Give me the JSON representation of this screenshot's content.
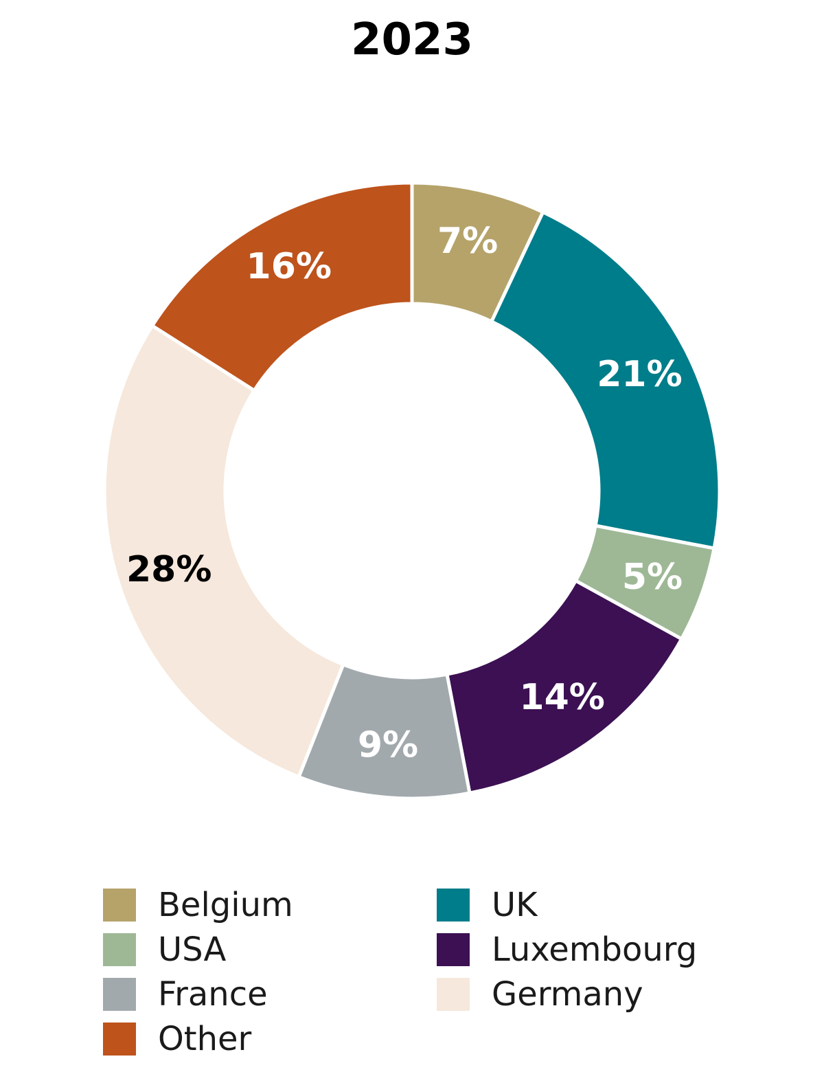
{
  "chart_data": {
    "type": "pie",
    "variant": "donut",
    "title": "2023",
    "unit": "%",
    "slices": [
      {
        "name": "Belgium",
        "value": 7,
        "label": "7%",
        "color": "#B5A36A",
        "label_color": "#ffffff"
      },
      {
        "name": "UK",
        "value": 21,
        "label": "21%",
        "color": "#007D8A",
        "label_color": "#ffffff"
      },
      {
        "name": "USA",
        "value": 5,
        "label": "5%",
        "color": "#9EB896",
        "label_color": "#ffffff"
      },
      {
        "name": "Luxembourg",
        "value": 14,
        "label": "14%",
        "color": "#3C1053",
        "label_color": "#ffffff"
      },
      {
        "name": "France",
        "value": 9,
        "label": "9%",
        "color": "#A2A9AD",
        "label_color": "#ffffff"
      },
      {
        "name": "Germany",
        "value": 28,
        "label": "28%",
        "color": "#F6E8DC",
        "label_color": "#000000"
      },
      {
        "name": "Other",
        "value": 16,
        "label": "16%",
        "color": "#BE531C",
        "label_color": "#ffffff"
      }
    ],
    "legend": {
      "placement": "bottom",
      "columns": [
        [
          "Belgium",
          "USA",
          "France",
          "Other"
        ],
        [
          "UK",
          "Luxembourg",
          "Germany"
        ]
      ]
    }
  }
}
